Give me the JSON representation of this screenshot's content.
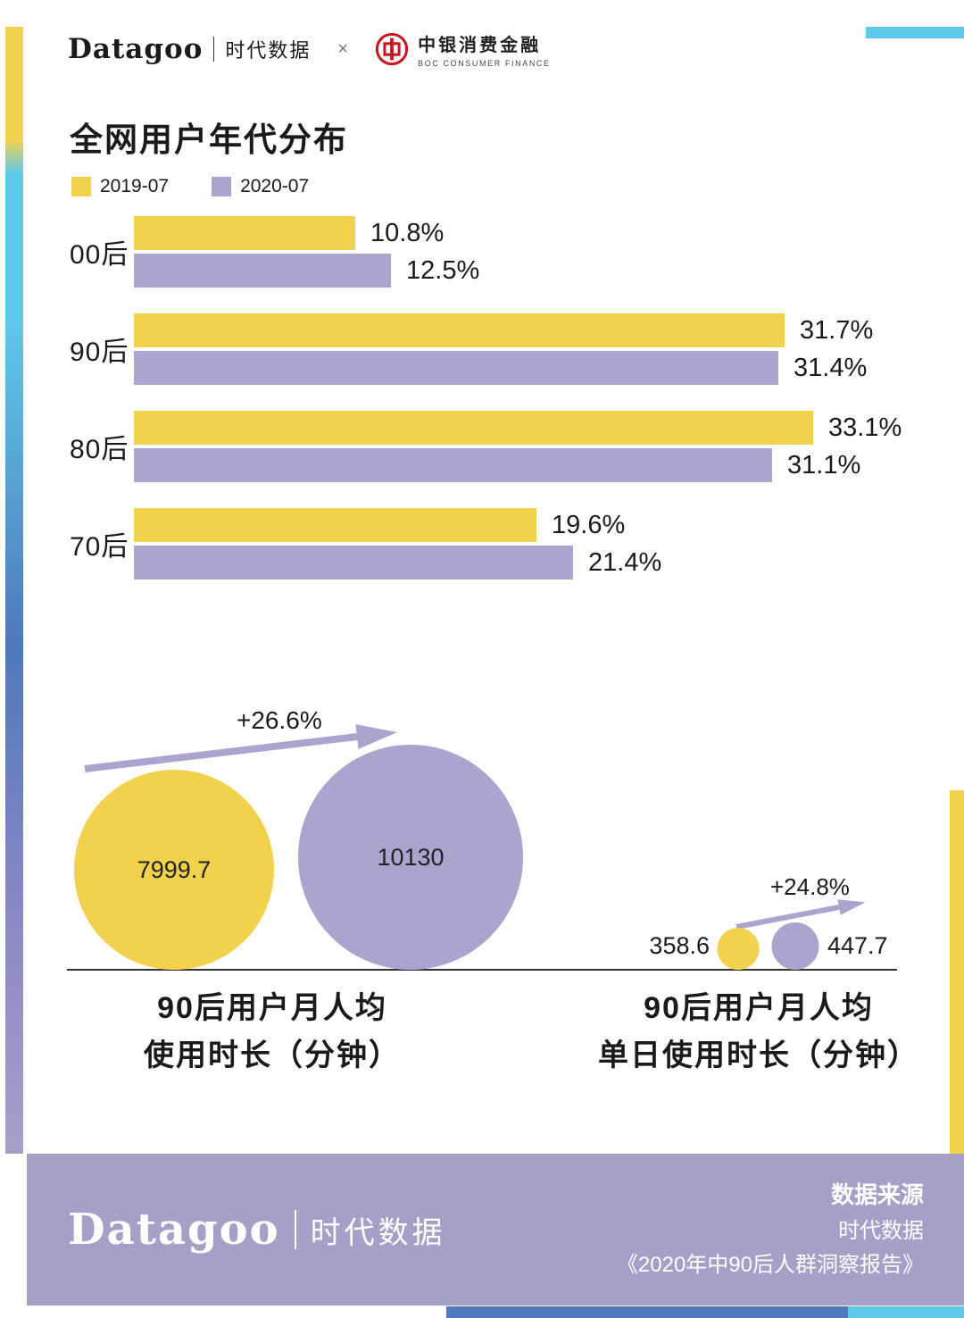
{
  "header": {
    "brand": "Datagoo",
    "brand_suffix": "时代数据",
    "separator": "×",
    "partner": {
      "name": "中银消费金融",
      "subtitle": "BOC CONSUMER FINANCE"
    }
  },
  "colors": {
    "yellow": "#F2D14D",
    "purple": "#ACA4CE",
    "footer_purple": "#A79FC8",
    "cyan": "#5FC9E9",
    "blue": "#4E79BC",
    "boc_red": "#C8161E"
  },
  "chart_data": [
    {
      "type": "bar",
      "title": "全网用户年代分布",
      "orientation": "horizontal",
      "categories": [
        "00后",
        "90后",
        "80后",
        "70后"
      ],
      "series": [
        {
          "name": "2019-07",
          "color": "#F2D14D",
          "values": [
            10.8,
            31.7,
            33.1,
            19.6
          ]
        },
        {
          "name": "2020-07",
          "color": "#ACA4CE",
          "values": [
            12.5,
            31.4,
            31.1,
            21.4
          ]
        }
      ],
      "value_suffix": "%",
      "xlim": [
        0,
        36
      ],
      "grid": false,
      "legend_position": "top-left"
    },
    {
      "type": "bubble",
      "title": "90后用户月人均使用时长（分钟）",
      "title_lines": [
        "90后用户月人均",
        "使用时长（分钟）"
      ],
      "growth_label": "+26.6%",
      "points": [
        {
          "name": "2019-07",
          "value": 7999.7,
          "color": "#F2D14D"
        },
        {
          "name": "2020-07",
          "value": 10130,
          "color": "#ACA4CE"
        }
      ]
    },
    {
      "type": "bubble",
      "title": "90后用户月人均单日使用时长（分钟）",
      "title_lines": [
        "90后用户月人均",
        "单日使用时长（分钟）"
      ],
      "growth_label": "+24.8%",
      "points": [
        {
          "name": "2019-07",
          "value": 358.6,
          "color": "#F2D14D"
        },
        {
          "name": "2020-07",
          "value": 447.7,
          "color": "#ACA4CE"
        }
      ]
    }
  ],
  "footer": {
    "brand": "Datagoo",
    "brand_suffix": "时代数据",
    "source_label": "数据来源",
    "source_name": "时代数据",
    "source_report": "《2020年中90后人群洞察报告》"
  }
}
